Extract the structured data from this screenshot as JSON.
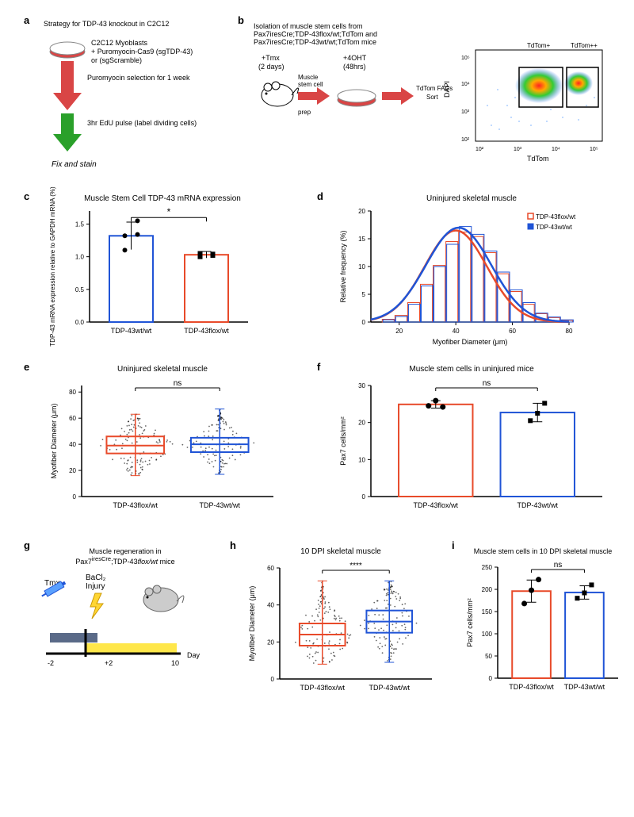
{
  "panel_a": {
    "label": "a",
    "title": "Strategy for TDP-43 knockout in C2C12",
    "step1a": "C2C12 Myoblasts",
    "step1b": "+ Puromyocin-Cas9 (sgTDP-43)",
    "step1c": "or (sgScramble)",
    "arrow1": "Puromyocin selection for 1 week",
    "arrow2": "3hr EdU pulse (label dividing cells)",
    "step_final": "Fix and stain",
    "dish_body": "#d94545",
    "dish_rim": "#b8b8b8",
    "arrow1_color": "#d94545",
    "arrow2_color": "#2aa02a"
  },
  "panel_b": {
    "label": "b",
    "title1": "Isolation of muscle stem cells from",
    "title2": "Pax7iresCre;TDP-43flox/wt;TdTom and",
    "title3": "Pax7iresCre;TDP-43wt/wt;TdTom mice",
    "tmx_label": "+Tmx",
    "tmx_days": "(2 days)",
    "prep_label": "Muscle stem cell prep",
    "oht_label": "+4OHT",
    "oht_hours": "(48hrs)",
    "sort_label": "TdTom FACs Sort",
    "arrow_color": "#d94545",
    "dish_body": "#d94545",
    "facs_xlabel": "TdTom",
    "facs_ylabel": "DAPI",
    "facs_gate1": "TdTom+",
    "facs_gate2": "TdTom++",
    "facs_xticks": [
      "10²",
      "10³",
      "10⁴",
      "10⁵"
    ],
    "facs_yticks": [
      "10²",
      "10³",
      "10⁴",
      "10⁵"
    ]
  },
  "panel_c": {
    "label": "c",
    "title": "Muscle Stem Cell TDP-43 mRNA expression",
    "ylabel": "TDP-43 mRNA expression relative to GAPDH mRNA (%)",
    "categories": [
      "TDP-43wt/wt",
      "TDP-43flox/wt"
    ],
    "values": [
      1.32,
      1.03
    ],
    "errors": [
      0.21,
      0.05
    ],
    "points_wt": [
      1.32,
      1.55,
      1.1,
      1.34
    ],
    "points_flox": [
      1.0,
      1.02,
      1.05,
      1.04
    ],
    "colors": [
      "#2054d6",
      "#e84a2a"
    ],
    "ylim": [
      0,
      1.7
    ],
    "yticks": [
      0.0,
      0.5,
      1.0,
      1.5
    ],
    "sig": "*"
  },
  "panel_d": {
    "label": "d",
    "title": "Uninjured skeletal muscle",
    "xlabel": "Myofiber Diameter (μm)",
    "ylabel": "Relative frequency (%)",
    "legend": [
      "TDP-43flox/wt",
      "TDP-43wt/wt"
    ],
    "legend_colors": [
      "#e84a2a",
      "#2054d6"
    ],
    "xlim": [
      10,
      80
    ],
    "xticks": [
      20,
      40,
      60,
      80
    ],
    "ylim": [
      0,
      20
    ],
    "yticks": [
      0,
      5,
      10,
      15,
      20
    ],
    "hist_red": [
      0.5,
      1.2,
      3.5,
      6.8,
      10.2,
      14.5,
      16.2,
      15.4,
      12.5,
      8.7,
      5.5,
      3.2,
      1.5,
      0.8,
      0.3
    ],
    "hist_blue": [
      0.4,
      1.0,
      3.2,
      6.5,
      10.0,
      14.0,
      17.2,
      15.8,
      12.8,
      9.0,
      5.8,
      3.5,
      1.6,
      0.9,
      0.4
    ],
    "hist_xstep": 4.5,
    "hist_xstart": 14,
    "mean": 40,
    "sd": 12
  },
  "panel_e": {
    "label": "e",
    "title": "Uninjured skeletal muscle",
    "ylabel": "Myofiber Diameter (μm)",
    "categories": [
      "TDP-43flox/wt",
      "TDP-43wt/wt"
    ],
    "colors": [
      "#e84a2a",
      "#2054d6"
    ],
    "ylim": [
      0,
      85
    ],
    "yticks": [
      0,
      20,
      40,
      60,
      80
    ],
    "sig": "ns",
    "box_flox": {
      "q1": 33,
      "med": 39,
      "q3": 46,
      "min": 16,
      "max": 63
    },
    "box_wt": {
      "q1": 34,
      "med": 40,
      "q3": 45,
      "min": 17,
      "max": 67
    }
  },
  "panel_f": {
    "label": "f",
    "title": "Muscle stem cells in uninjured mice",
    "ylabel": "Pax7 cells/mm²",
    "categories": [
      "TDP-43flox/wt",
      "TDP-43wt/wt"
    ],
    "colors": [
      "#e84a2a",
      "#2054d6"
    ],
    "values": [
      24.9,
      22.7
    ],
    "errors": [
      1.0,
      2.5
    ],
    "points_flox": [
      24.5,
      25.9,
      24.2
    ],
    "points_wt": [
      20.5,
      22.5,
      25.2
    ],
    "ylim": [
      0,
      30
    ],
    "yticks": [
      0,
      10,
      20,
      30
    ],
    "sig": "ns"
  },
  "panel_g": {
    "label": "g",
    "title": "Muscle regeneration in Pax7iresCre;TDP-43flox/wt mice",
    "tmx": "Tmx",
    "bacl2": "BaCl₂ Injury",
    "day_label": "Day",
    "ticks": [
      "-2",
      "+2",
      "10"
    ]
  },
  "panel_h": {
    "label": "h",
    "title": "10 DPI skeletal muscle",
    "ylabel": "Myofiber Diameter (μm)",
    "categories": [
      "TDP-43flox/wt",
      "TDP-43wt/wt"
    ],
    "colors": [
      "#e84a2a",
      "#2054d6"
    ],
    "ylim": [
      0,
      60
    ],
    "yticks": [
      0,
      20,
      40,
      60
    ],
    "sig": "****",
    "box_flox": {
      "q1": 18,
      "med": 24,
      "q3": 30,
      "min": 8,
      "max": 53
    },
    "box_wt": {
      "q1": 25,
      "med": 31,
      "q3": 37,
      "min": 9,
      "max": 53
    }
  },
  "panel_i": {
    "label": "i",
    "title": "Muscle stem cells in 10 DPI skeletal muscle",
    "ylabel": "Pax7 cells/mm²",
    "categories": [
      "TDP-43flox/wt",
      "TDP-43wt/wt"
    ],
    "colors": [
      "#e84a2a",
      "#2054d6"
    ],
    "values": [
      196,
      193
    ],
    "errors": [
      25,
      15
    ],
    "points_flox": [
      168,
      198,
      222
    ],
    "points_wt": [
      180,
      192,
      210
    ],
    "ylim": [
      0,
      250
    ],
    "yticks": [
      0,
      50,
      100,
      150,
      200,
      250
    ],
    "sig": "ns"
  }
}
